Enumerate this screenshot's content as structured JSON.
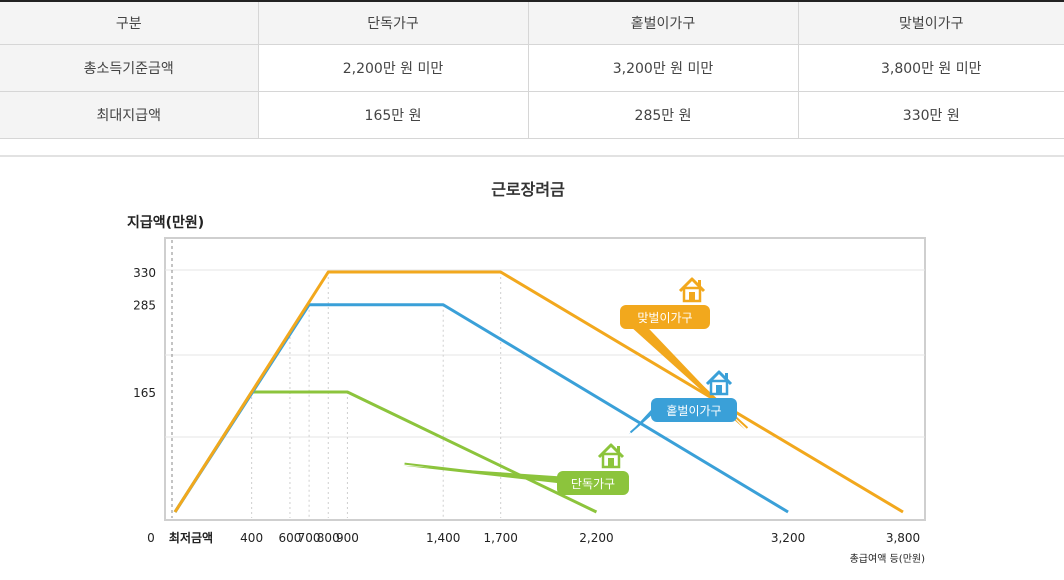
{
  "table": {
    "headers": [
      "구분",
      "단독가구",
      "홑벌이가구",
      "맞벌이가구"
    ],
    "rows": [
      {
        "label": "총소득기준금액",
        "values": [
          "2,200만 원 미만",
          "3,200만 원 미만",
          "3,800만 원 미만"
        ]
      },
      {
        "label": "최대지급액",
        "values": [
          "165만 원",
          "285만 원",
          "330만 원"
        ]
      }
    ]
  },
  "chart_data": {
    "type": "line",
    "title": "근로장려금",
    "ylabel": "지급액(만원)",
    "xlabel": "총급여액 등(만원)",
    "x_origin_label": "0",
    "x_min_label": "최저금액",
    "xlim": [
      0,
      3800
    ],
    "ylim": [
      0,
      350
    ],
    "x_ticks": [
      400,
      600,
      700,
      800,
      900,
      1400,
      1700,
      2200,
      3200,
      3800
    ],
    "x_tick_labels": [
      "400",
      "600",
      "700",
      "800",
      "900",
      "1,400",
      "1,700",
      "2,200",
      "3,200",
      "3,800"
    ],
    "y_ticks": [
      165,
      285,
      330
    ],
    "y_tick_labels": [
      "165",
      "285",
      "330"
    ],
    "grid": true,
    "series": [
      {
        "name": "맞벌이가구",
        "color": "#f2a81d",
        "icon": "house-icon",
        "points": [
          [
            0,
            0
          ],
          [
            800,
            330
          ],
          [
            1700,
            330
          ],
          [
            3800,
            0
          ]
        ]
      },
      {
        "name": "홑벌이가구",
        "color": "#3aa0d8",
        "icon": "house-icon",
        "points": [
          [
            0,
            0
          ],
          [
            700,
            285
          ],
          [
            1400,
            285
          ],
          [
            3200,
            0
          ]
        ]
      },
      {
        "name": "단독가구",
        "color": "#8cc43c",
        "icon": "house-icon",
        "points": [
          [
            0,
            0
          ],
          [
            400,
            165
          ],
          [
            900,
            165
          ],
          [
            2200,
            0
          ]
        ]
      }
    ]
  }
}
